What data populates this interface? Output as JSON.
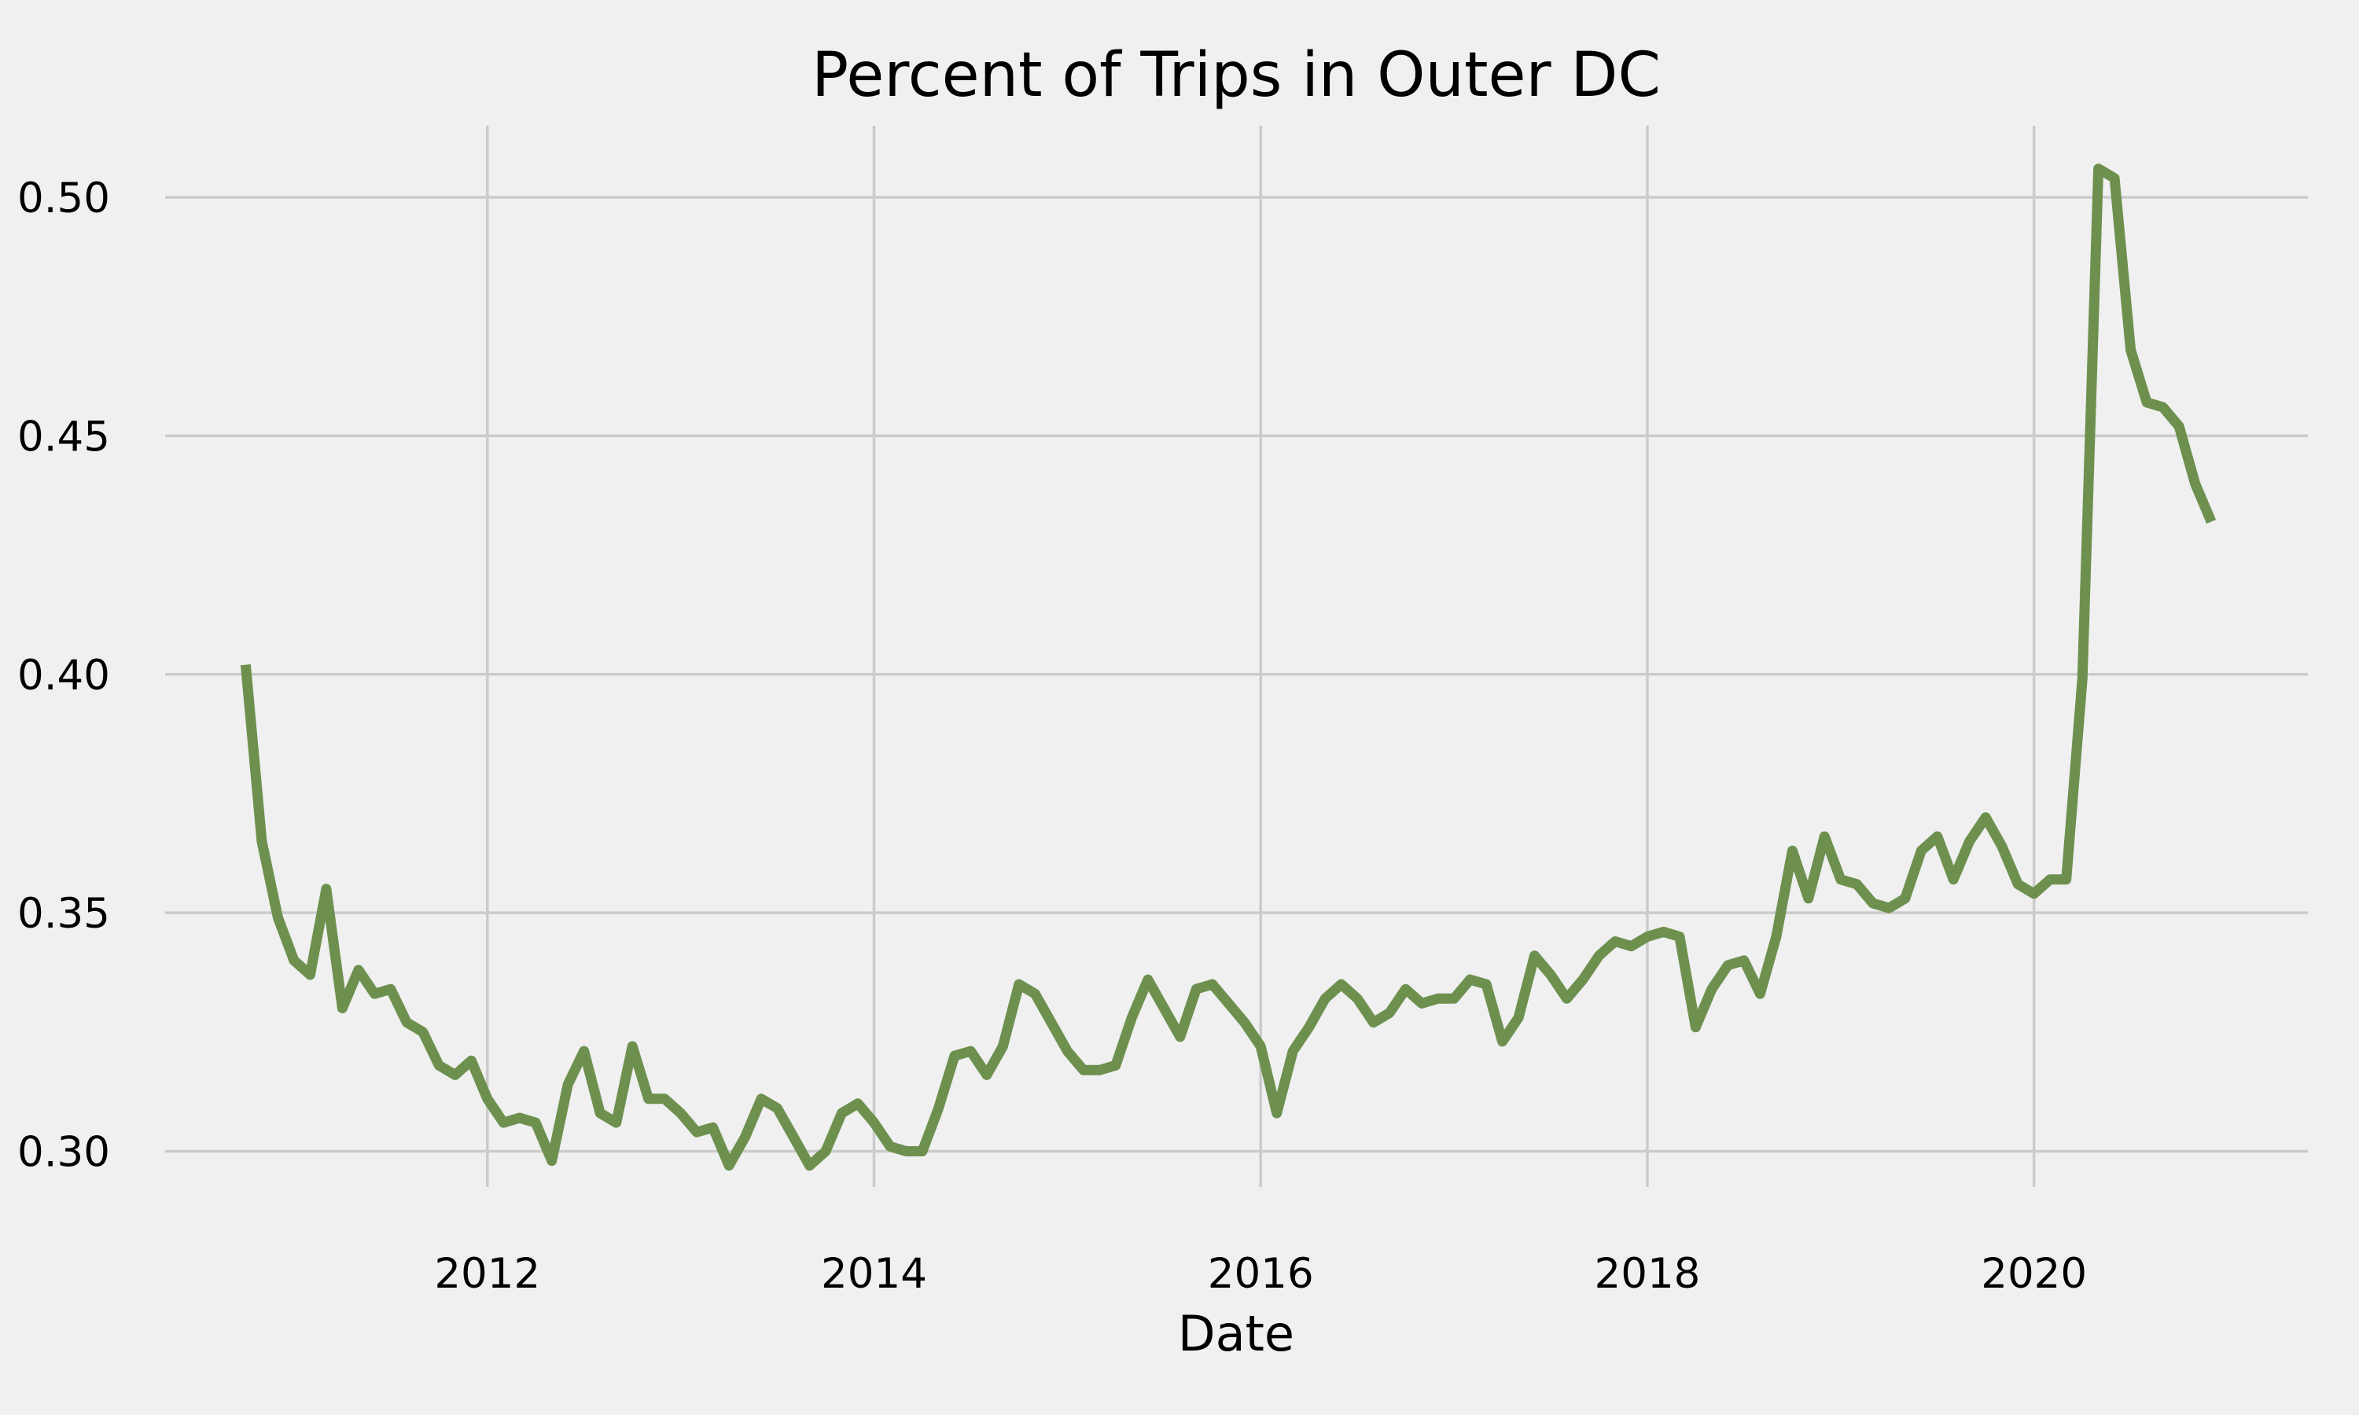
{
  "chart_data": {
    "type": "line",
    "title": "Percent of Trips in Outer DC",
    "xlabel": "Date",
    "ylabel": "",
    "x_ticks": [
      "2012",
      "2014",
      "2016",
      "2018",
      "2020"
    ],
    "y_ticks": [
      "0.30",
      "0.35",
      "0.40",
      "0.45",
      "0.50"
    ],
    "xlim": [
      "2010-05-01",
      "2021-06-01"
    ],
    "ylim": [
      0.2925,
      0.515
    ],
    "grid": true,
    "line_color": "#6d904f",
    "background_color": "#f0f0f0",
    "grid_color": "#cbcbcb",
    "series": [
      {
        "x": [
          "2010-10",
          "2010-11",
          "2010-12",
          "2011-01",
          "2011-02",
          "2011-03",
          "2011-04",
          "2011-05",
          "2011-06",
          "2011-07",
          "2011-08",
          "2011-09",
          "2011-10",
          "2011-11",
          "2011-12",
          "2012-01",
          "2012-02",
          "2012-03",
          "2012-04",
          "2012-05",
          "2012-06",
          "2012-07",
          "2012-08",
          "2012-09",
          "2012-10",
          "2012-11",
          "2012-12",
          "2013-01",
          "2013-02",
          "2013-03",
          "2013-04",
          "2013-05",
          "2013-06",
          "2013-07",
          "2013-08",
          "2013-09",
          "2013-10",
          "2013-11",
          "2013-12",
          "2014-01",
          "2014-02",
          "2014-03",
          "2014-04",
          "2014-05",
          "2014-06",
          "2014-07",
          "2014-08",
          "2014-09",
          "2014-10",
          "2014-11",
          "2014-12",
          "2015-01",
          "2015-02",
          "2015-03",
          "2015-04",
          "2015-05",
          "2015-06",
          "2015-07",
          "2015-08",
          "2015-09",
          "2015-10",
          "2015-11",
          "2015-12",
          "2016-01",
          "2016-02",
          "2016-03",
          "2016-04",
          "2016-05",
          "2016-06",
          "2016-07",
          "2016-08",
          "2016-09",
          "2016-10",
          "2016-11",
          "2016-12",
          "2017-01",
          "2017-02",
          "2017-03",
          "2017-04",
          "2017-05",
          "2017-06",
          "2017-07",
          "2017-08",
          "2017-09",
          "2017-10",
          "2017-11",
          "2017-12",
          "2018-01",
          "2018-02",
          "2018-03",
          "2018-04",
          "2018-05",
          "2018-06",
          "2018-07",
          "2018-08",
          "2018-09",
          "2018-10",
          "2018-11",
          "2018-12",
          "2019-01",
          "2019-02",
          "2019-03",
          "2019-04",
          "2019-05",
          "2019-06",
          "2019-07",
          "2019-08",
          "2019-09",
          "2019-10",
          "2019-11",
          "2019-12",
          "2020-01",
          "2020-02",
          "2020-03",
          "2020-04",
          "2020-05",
          "2020-06",
          "2020-07",
          "2020-08",
          "2020-09",
          "2020-10",
          "2020-11",
          "2020-12"
        ],
        "values": [
          0.402,
          0.365,
          0.349,
          0.34,
          0.337,
          0.355,
          0.33,
          0.338,
          0.333,
          0.334,
          0.327,
          0.325,
          0.318,
          0.316,
          0.319,
          0.311,
          0.306,
          0.307,
          0.306,
          0.298,
          0.314,
          0.321,
          0.308,
          0.306,
          0.322,
          0.311,
          0.311,
          0.308,
          0.304,
          0.305,
          0.297,
          0.303,
          0.311,
          0.309,
          0.303,
          0.297,
          0.3,
          0.308,
          0.31,
          0.306,
          0.301,
          0.3,
          0.3,
          0.309,
          0.32,
          0.321,
          0.316,
          0.322,
          0.335,
          0.333,
          0.327,
          0.321,
          0.317,
          0.317,
          0.318,
          0.328,
          0.336,
          0.33,
          0.324,
          0.334,
          0.335,
          0.331,
          0.327,
          0.322,
          0.308,
          0.321,
          0.326,
          0.332,
          0.335,
          0.332,
          0.327,
          0.329,
          0.334,
          0.331,
          0.332,
          0.332,
          0.336,
          0.335,
          0.323,
          0.328,
          0.341,
          0.337,
          0.332,
          0.336,
          0.341,
          0.344,
          0.343,
          0.345,
          0.346,
          0.345,
          0.326,
          0.334,
          0.339,
          0.34,
          0.333,
          0.345,
          0.363,
          0.353,
          0.366,
          0.357,
          0.356,
          0.352,
          0.351,
          0.353,
          0.363,
          0.366,
          0.357,
          0.365,
          0.37,
          0.364,
          0.356,
          0.354,
          0.357,
          0.357,
          0.399,
          0.506,
          0.504,
          0.468,
          0.457,
          0.456,
          0.452,
          0.44,
          0.432
        ]
      }
    ]
  }
}
